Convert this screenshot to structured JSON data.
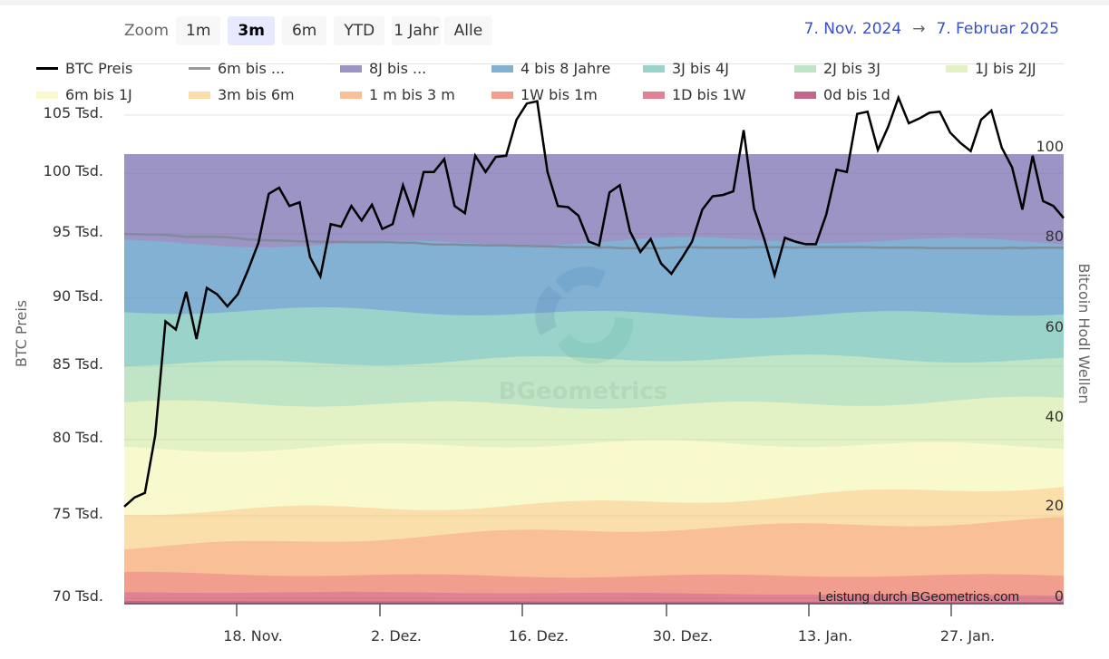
{
  "zoom": {
    "label": "Zoom",
    "buttons": [
      "1m",
      "3m",
      "6m",
      "YTD",
      "1 Jahr",
      "Alle"
    ],
    "active": "3m"
  },
  "range": {
    "from": "7. Nov. 2024",
    "arrow": "→",
    "to": "7. Februar 2025"
  },
  "credit": "Leistung durch BGeometrics.com",
  "watermark": "BGeometrics",
  "chart_data": {
    "type": "area",
    "title": "",
    "xlabel": "",
    "ylabel": "BTC Preis",
    "y2label": "Bitcoin Hodl Wellen",
    "x_ticks": [
      "18. Nov.",
      "2. Dez.",
      "16. Dez.",
      "30. Dez.",
      "13. Jan.",
      "27. Jan."
    ],
    "y_ticks": [
      "70 Tsd.",
      "75 Tsd.",
      "80 Tsd.",
      "85 Tsd.",
      "90 Tsd.",
      "95 Tsd.",
      "100 Tsd.",
      "105 Tsd."
    ],
    "y_tick_values": [
      70000,
      75000,
      80000,
      85000,
      90000,
      95000,
      100000,
      105000
    ],
    "y2_ticks": [
      "0",
      "20",
      "40",
      "60",
      "80",
      "100"
    ],
    "y2_tick_values": [
      0,
      20,
      40,
      60,
      80,
      100
    ],
    "ylim": [
      70000,
      105000
    ],
    "y2lim": [
      0,
      100
    ],
    "grid": true,
    "legend": "top",
    "legend_entries": [
      {
        "name": "BTC Preis",
        "color": "#000000",
        "kind": "line"
      },
      {
        "name": "6m bis ...",
        "color": "#999999",
        "kind": "line"
      },
      {
        "name": "8J bis ...",
        "color": "#9c94c4",
        "kind": "area"
      },
      {
        "name": "4 bis 8 Jahre",
        "color": "#82b1d3",
        "kind": "area"
      },
      {
        "name": "3J bis 4J",
        "color": "#9ad3ca",
        "kind": "area"
      },
      {
        "name": "2J bis 3J",
        "color": "#bfe5c6",
        "kind": "area"
      },
      {
        "name": "1J bis 2JJ",
        "color": "#e2f2c4",
        "kind": "area"
      },
      {
        "name": "6m bis 1J",
        "color": "#f8f9cc",
        "kind": "area"
      },
      {
        "name": "3m bis 6m",
        "color": "#fbdfaa",
        "kind": "area"
      },
      {
        "name": "1 m bis 3 m",
        "color": "#f9bf96",
        "kind": "area"
      },
      {
        "name": "1W bis 1m",
        "color": "#f19e8e",
        "kind": "area"
      },
      {
        "name": "1D bis 1W",
        "color": "#df8392",
        "kind": "area"
      },
      {
        "name": "0d bis 1d",
        "color": "#c3668c",
        "kind": "area"
      }
    ],
    "x_days": 92,
    "btc_price": [
      75600,
      76200,
      76500,
      80300,
      88300,
      87700,
      90500,
      87000,
      90800,
      90300,
      89400,
      90300,
      92200,
      94300,
      98300,
      98800,
      97300,
      97600,
      93200,
      91700,
      95800,
      95600,
      97300,
      96100,
      97400,
      95400,
      95800,
      99000,
      96600,
      100100,
      100100,
      101200,
      97300,
      96700,
      101500,
      100100,
      101400,
      101500,
      104600,
      106000,
      106200,
      100100,
      97300,
      97200,
      96500,
      94400,
      94100,
      98400,
      99000,
      95200,
      93600,
      94600,
      92700,
      91900,
      93100,
      94400,
      97000,
      98100,
      98200,
      98500,
      103700,
      97100,
      94600,
      91800,
      94700,
      94400,
      94200,
      94200,
      96600,
      100300,
      100100,
      105100,
      105300,
      102000,
      104000,
      106500,
      104300,
      104700,
      105200,
      105300,
      103500,
      102600,
      101900,
      104600,
      105400,
      102200,
      100500,
      97000,
      101500,
      97700,
      97300,
      96300
    ],
    "six_month_plus": [
      82.2,
      82.2,
      82.1,
      82.1,
      82.0,
      81.8,
      81.6,
      81.6,
      81.6,
      81.6,
      81.5,
      81.3,
      81.0,
      80.9,
      80.8,
      80.8,
      80.7,
      80.6,
      80.6,
      80.5,
      80.5,
      80.5,
      80.4,
      80.4,
      80.4,
      80.4,
      80.4,
      80.3,
      80.3,
      80.1,
      79.9,
      79.9,
      79.9,
      79.8,
      79.8,
      79.7,
      79.7,
      79.7,
      79.6,
      79.6,
      79.5,
      79.5,
      79.4,
      79.3,
      79.3,
      79.3,
      79.2,
      79.3,
      79.1,
      79.1,
      79.1,
      79.1,
      79.1,
      79.2,
      79.3,
      79.3,
      79.2,
      79.2,
      79.2,
      79.2,
      79.2,
      79.3,
      79.3,
      79.3,
      79.3,
      79.2,
      79.3,
      79.3,
      79.3,
      79.3,
      79.3,
      79.3,
      79.3,
      79.2,
      79.2,
      79.2,
      79.2,
      79.2,
      79.1,
      79.1,
      79.1,
      79.1,
      79.1,
      79.1,
      79.1,
      79.1,
      79.2,
      79.1,
      79.2,
      79.2,
      79.2,
      79.2
    ],
    "bands_cumulative_top": {
      "8J bis ...": {
        "start": 100,
        "end": 100
      },
      "4 bis 8 Jahre": {
        "start": 80.4,
        "end": 80.5
      },
      "3J bis 4J": {
        "start": 64.8,
        "end": 64.6
      },
      "2J bis 3J": {
        "start": 53.8,
        "end": 54.5
      },
      "1J bis 2JJ": {
        "start": 44.0,
        "end": 45.0
      },
      "6m bis 1J": {
        "start": 34.8,
        "end": 35.6
      },
      "3m bis 6m": {
        "start": 19.8,
        "end": 25.7
      },
      "1 m bis 3 m": {
        "start": 12.8,
        "end": 19.1
      },
      "1W bis 1m": {
        "start": 6.6,
        "end": 6.0
      },
      "1D bis 1W": {
        "start": 2.6,
        "end": 2.0
      },
      "0d bis 1d": {
        "start": 0.6,
        "end": 0.4
      }
    }
  }
}
